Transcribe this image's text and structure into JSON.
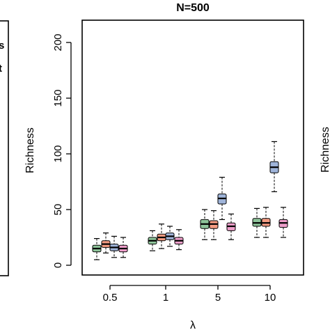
{
  "chart_data": {
    "type": "box",
    "title": "N=500",
    "xlabel": "λ",
    "ylabel": "Richness",
    "ylim": [
      0,
      220
    ],
    "yticks": [
      0,
      50,
      100,
      150,
      200
    ],
    "categories": [
      "0.5",
      "1",
      "5",
      "10"
    ],
    "series": [
      {
        "color": "#8ec49a",
        "boxes": [
          {
            "min": 5,
            "q1": 12,
            "median": 15,
            "q3": 18,
            "max": 24
          },
          {
            "min": 13,
            "q1": 19,
            "median": 22,
            "q3": 25,
            "max": 31
          },
          {
            "min": 23,
            "q1": 33,
            "median": 37,
            "q3": 41,
            "max": 50
          },
          {
            "min": 25,
            "q1": 35,
            "median": 38,
            "q3": 42,
            "max": 51
          }
        ]
      },
      {
        "color": "#f39b82",
        "boxes": [
          {
            "min": 11,
            "q1": 16,
            "median": 19,
            "q3": 22,
            "max": 29
          },
          {
            "min": 15,
            "q1": 22,
            "median": 25,
            "q3": 28,
            "max": 37
          },
          {
            "min": 23,
            "q1": 33,
            "median": 37,
            "q3": 40,
            "max": 49
          },
          {
            "min": 25,
            "q1": 35,
            "median": 38,
            "q3": 42,
            "max": 52
          }
        ]
      },
      {
        "color": "#9fb4d9",
        "boxes": [
          {
            "min": 7,
            "q1": 13,
            "median": 16,
            "q3": 19,
            "max": 26
          },
          {
            "min": 17,
            "q1": 23,
            "median": 26,
            "q3": 29,
            "max": 35
          },
          {
            "min": 41,
            "q1": 55,
            "median": 60,
            "q3": 64,
            "max": 79
          },
          {
            "min": 66,
            "q1": 83,
            "median": 88,
            "q3": 93,
            "max": 111
          }
        ]
      },
      {
        "color": "#ee9fca",
        "boxes": [
          {
            "min": 7,
            "q1": 12,
            "median": 15,
            "q3": 18,
            "max": 25
          },
          {
            "min": 14,
            "q1": 19,
            "median": 22,
            "q3": 25,
            "max": 32
          },
          {
            "min": 23,
            "q1": 31,
            "median": 35,
            "q3": 38,
            "max": 46
          },
          {
            "min": 25,
            "q1": 34,
            "median": 38,
            "q3": 41,
            "max": 52
          }
        ]
      }
    ]
  },
  "left_fragment": {
    "labels": [
      "s",
      "t"
    ]
  },
  "right_fragment": {
    "ylabel": "Richness"
  }
}
